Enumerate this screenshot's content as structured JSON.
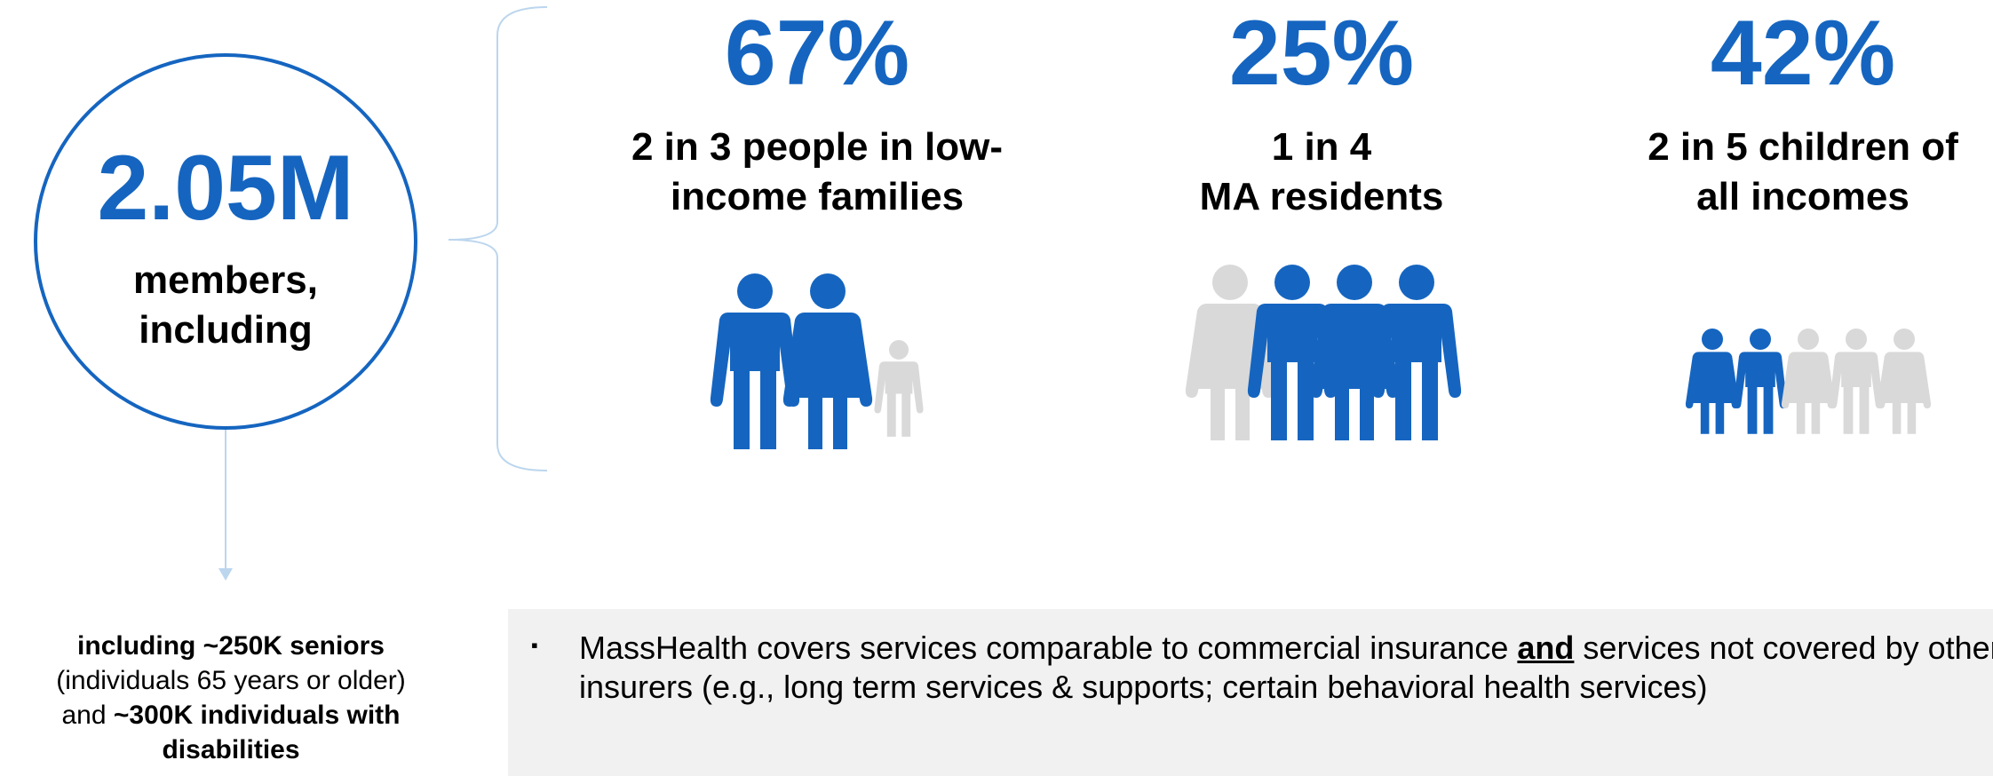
{
  "members": {
    "value": "2.05M",
    "label_line1": "members,",
    "label_line2": "including"
  },
  "stats": [
    {
      "percent": "67%",
      "line1": "2 in 3 people in low-",
      "line2": "income families"
    },
    {
      "percent": "25%",
      "line1": "1 in 4",
      "line2": "MA residents"
    },
    {
      "percent": "42%",
      "line1": "2 in 5 children of",
      "line2": "all incomes"
    }
  ],
  "subnote": {
    "part1_bold": "including ~250K seniors",
    "part2": "(individuals 65 years or older)",
    "part3": "and",
    "part4_bold": "~300K individuals with",
    "part5_bold": "disabilities"
  },
  "bullet": {
    "marker": "▪",
    "text_before": "MassHealth covers services comparable to commercial insurance ",
    "text_emphasis": "and",
    "text_after": " services not covered by other insurers (e.g., long term services & supports; certain behavioral health services)"
  },
  "colors": {
    "accent": "#1565c0",
    "figure_grey": "#d9d9d9",
    "connector": "#bcd6ee",
    "panel_bg": "#f1f1f1"
  }
}
